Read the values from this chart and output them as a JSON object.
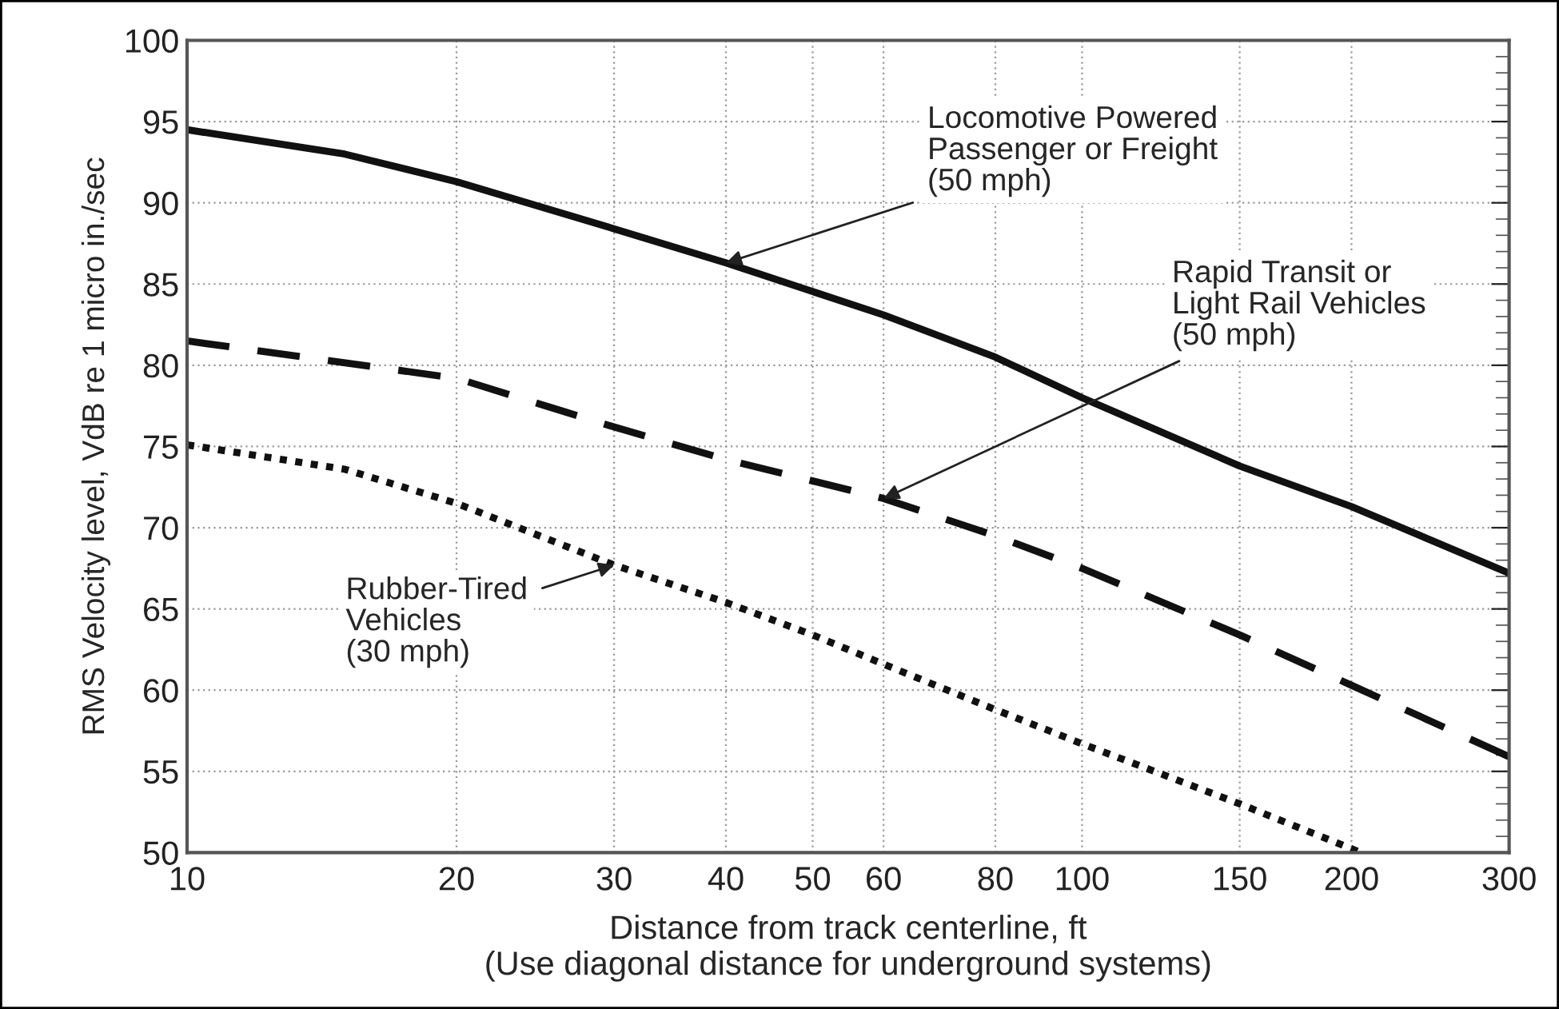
{
  "chart_data": {
    "type": "line",
    "xlabel": "Distance from track centerline, ft\n(Use diagonal distance for underground systems)",
    "ylabel": "RMS Velocity level, VdB re 1 micro in./sec",
    "log": "x",
    "grid": true,
    "legend": false,
    "marker": "none",
    "xlim": [
      10,
      300
    ],
    "xticks": [
      10,
      20,
      30,
      40,
      50,
      60,
      80,
      100,
      150,
      200,
      300
    ],
    "ylim": [
      50,
      100
    ],
    "yticks": [
      50,
      {
        "value": 51,
        "label": null
      },
      {
        "value": 52,
        "label": null
      },
      {
        "value": 53,
        "label": null
      },
      {
        "value": 54,
        "label": null
      },
      55,
      {
        "value": 56,
        "label": null
      },
      {
        "value": 57,
        "label": null
      },
      {
        "value": 58,
        "label": null
      },
      {
        "value": 59,
        "label": null
      },
      60,
      {
        "value": 61,
        "label": null
      },
      {
        "value": 62,
        "label": null
      },
      {
        "value": 63,
        "label": null
      },
      {
        "value": 64,
        "label": null
      },
      65,
      {
        "value": 66,
        "label": null
      },
      {
        "value": 67,
        "label": null
      },
      {
        "value": 68,
        "label": null
      },
      {
        "value": 69,
        "label": null
      },
      70,
      {
        "value": 71,
        "label": null
      },
      {
        "value": 72,
        "label": null
      },
      {
        "value": 73,
        "label": null
      },
      {
        "value": 74,
        "label": null
      },
      75,
      {
        "value": 76,
        "label": null
      },
      {
        "value": 77,
        "label": null
      },
      {
        "value": 78,
        "label": null
      },
      {
        "value": 79,
        "label": null
      },
      80,
      {
        "value": 81,
        "label": null
      },
      {
        "value": 82,
        "label": null
      },
      {
        "value": 83,
        "label": null
      },
      {
        "value": 84,
        "label": null
      },
      85,
      {
        "value": 86,
        "label": null
      },
      {
        "value": 87,
        "label": null
      },
      {
        "value": 88,
        "label": null
      },
      {
        "value": 89,
        "label": null
      },
      90,
      {
        "value": 91,
        "label": null
      },
      {
        "value": 92,
        "label": null
      },
      {
        "value": 93,
        "label": null
      },
      {
        "value": 94,
        "label": null
      },
      95,
      {
        "value": 96,
        "label": null
      },
      {
        "value": 97,
        "label": null
      },
      {
        "value": 98,
        "label": null
      },
      {
        "value": 99,
        "label": null
      },
      100
    ],
    "series": [
      {
        "color": "#111111",
        "line_style": "solid",
        "x": [
          10,
          15,
          20,
          30,
          40,
          60,
          80,
          100,
          150,
          200,
          300
        ],
        "values": [
          94.5,
          93.0,
          91.3,
          88.4,
          86.3,
          83.1,
          80.5,
          78.0,
          73.8,
          71.3,
          67.2
        ]
      },
      {
        "color": "#111111",
        "line_style": "dashed",
        "x": [
          10,
          20,
          30,
          40,
          60,
          80,
          100,
          150,
          200,
          300
        ],
        "values": [
          81.5,
          79.2,
          76.2,
          74.2,
          71.8,
          69.5,
          67.5,
          63.4,
          60.3,
          55.9
        ]
      },
      {
        "color": "#111111",
        "line_style": "dotted",
        "x": [
          10,
          15,
          20,
          30,
          40,
          50,
          60,
          80,
          100,
          150,
          205
        ],
        "values": [
          75.1,
          73.6,
          71.5,
          67.7,
          65.4,
          63.4,
          61.6,
          58.8,
          56.7,
          53.0,
          50.0
        ]
      }
    ],
    "annotations": [
      {
        "text": "Locomotive Powered\nPassenger or Freight\n(50 mph)",
        "x": 40,
        "y": 86.3
      },
      {
        "text": "Rapid Transit or\nLight Rail Vehicles\n(50 mph)",
        "x": 60,
        "y": 71.8
      },
      {
        "text": "Rubber-Tired\nVehicles\n(30 mph)",
        "x": 30,
        "y": 67.7
      }
    ]
  }
}
